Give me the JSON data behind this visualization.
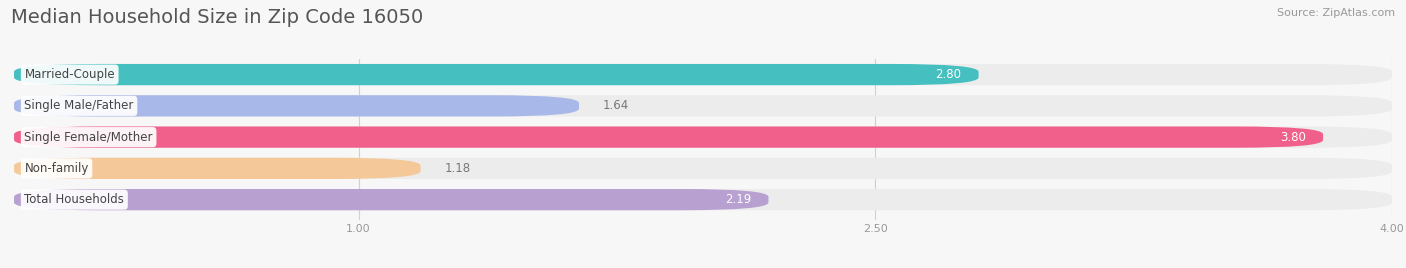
{
  "title": "Median Household Size in Zip Code 16050",
  "source": "Source: ZipAtlas.com",
  "categories": [
    "Married-Couple",
    "Single Male/Father",
    "Single Female/Mother",
    "Non-family",
    "Total Households"
  ],
  "values": [
    2.8,
    1.64,
    3.8,
    1.18,
    2.19
  ],
  "bar_colors": [
    "#45BFBF",
    "#A8B8E8",
    "#F0608A",
    "#F5C89A",
    "#B8A0D0"
  ],
  "xlim_min": 0.0,
  "xlim_max": 4.0,
  "xticks": [
    1.0,
    2.5,
    4.0
  ],
  "xtick_labels": [
    "1.00",
    "2.50",
    "4.00"
  ],
  "background_color": "#f7f7f7",
  "bar_bg_color": "#ececec",
  "title_fontsize": 14,
  "label_fontsize": 8.5,
  "value_fontsize": 8.5,
  "source_fontsize": 8,
  "value_inside_color": "white",
  "value_outside_color": "#777777",
  "value_inside_threshold": 2.0
}
